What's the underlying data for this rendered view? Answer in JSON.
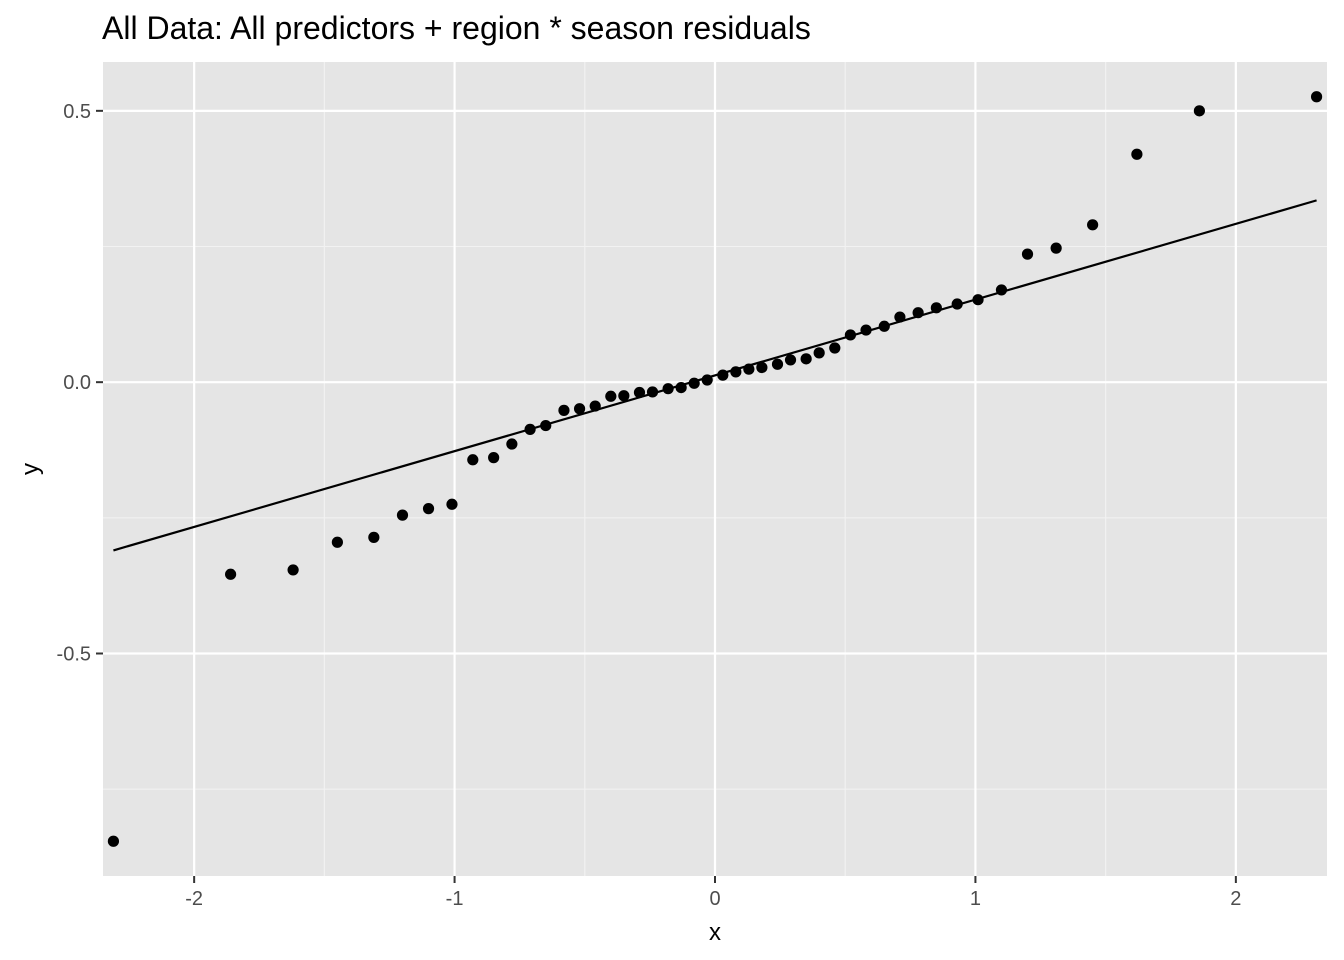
{
  "chart_data": {
    "type": "scatter",
    "title": "All Data: All predictors + region * season residuals",
    "xlabel": "x",
    "ylabel": "y",
    "xlim": [
      -2.35,
      2.35
    ],
    "ylim": [
      -0.91,
      0.59
    ],
    "x_ticks": [
      -2,
      -1,
      0,
      1,
      2
    ],
    "x_tick_labels": [
      "-2",
      "-1",
      "0",
      "1",
      "2"
    ],
    "y_ticks": [
      -0.5,
      0.0,
      0.5
    ],
    "y_tick_labels": [
      "-0.5",
      "0.0",
      "0.5"
    ],
    "grid": true,
    "reference_line": {
      "x": [
        -2.31,
        2.31
      ],
      "y": [
        -0.31,
        0.335
      ]
    },
    "points": {
      "x": [
        -2.31,
        -1.86,
        -1.62,
        -1.45,
        -1.31,
        -1.2,
        -1.1,
        -1.01,
        -0.93,
        -0.85,
        -0.78,
        -0.71,
        -0.65,
        -0.58,
        -0.52,
        -0.46,
        -0.4,
        -0.35,
        -0.29,
        -0.24,
        -0.18,
        -0.13,
        -0.08,
        -0.03,
        0.03,
        0.08,
        0.13,
        0.18,
        0.24,
        0.29,
        0.35,
        0.4,
        0.46,
        0.52,
        0.58,
        0.65,
        0.71,
        0.78,
        0.85,
        0.93,
        1.01,
        1.1,
        1.2,
        1.31,
        1.45,
        1.62,
        1.86,
        2.31
      ],
      "y": [
        -0.846,
        -0.354,
        -0.346,
        -0.295,
        -0.286,
        -0.245,
        -0.233,
        -0.225,
        -0.143,
        -0.139,
        -0.114,
        -0.087,
        -0.08,
        -0.052,
        -0.049,
        -0.044,
        -0.026,
        -0.025,
        -0.019,
        -0.018,
        -0.012,
        -0.01,
        -0.002,
        0.004,
        0.013,
        0.019,
        0.024,
        0.027,
        0.033,
        0.041,
        0.043,
        0.054,
        0.063,
        0.087,
        0.096,
        0.103,
        0.12,
        0.128,
        0.137,
        0.144,
        0.152,
        0.17,
        0.236,
        0.247,
        0.29,
        0.42,
        0.5,
        0.526
      ]
    },
    "colors": {
      "panel": "#e5e5e5",
      "grid_major": "#ffffff",
      "grid_minor": "#f2f2f2",
      "point": "#000000",
      "line": "#000000"
    }
  }
}
